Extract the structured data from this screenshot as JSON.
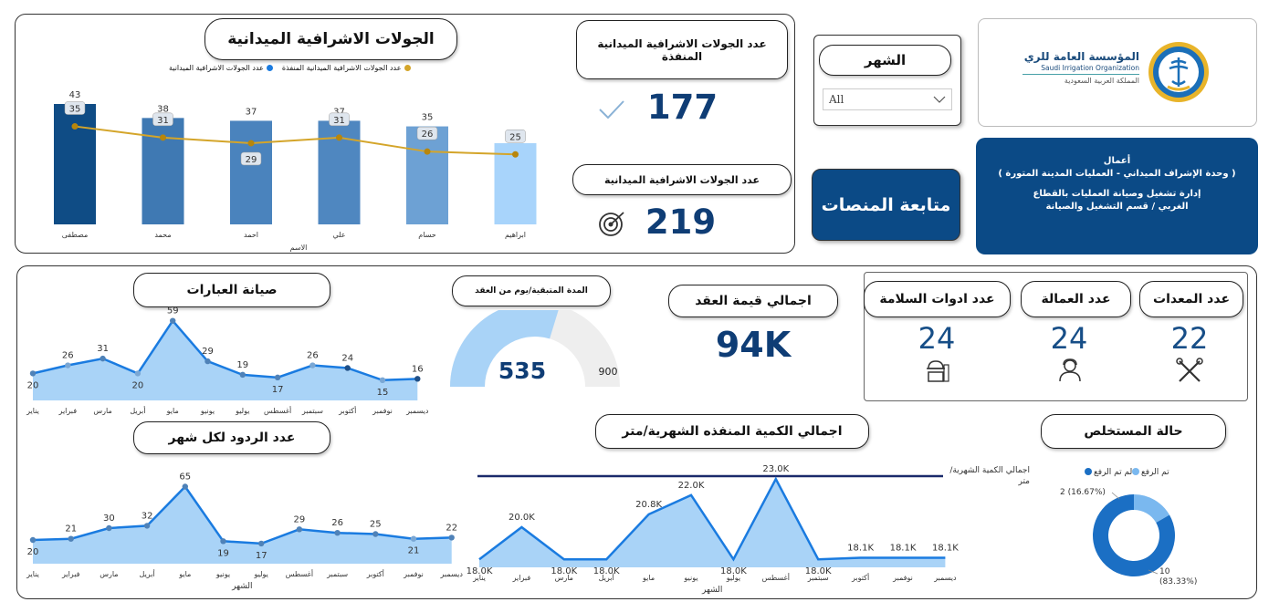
{
  "colors": {
    "navy": "#0b4a86",
    "num": "#0f3d75",
    "line_gold": "#d4a52a",
    "area_light": "#a9d3f7",
    "area_line": "#1a7be0"
  },
  "header": {
    "title": "الجولات الاشرافية الميدانية",
    "legend_a": "عدد الجولات الاشرافية الميدانية المنفذة",
    "legend_b": "عدد الجولات الاشرافية الميدانية",
    "executed_card_title": "عدد الجولات الاشرافية الميدانية المنفذة",
    "executed_value": "177",
    "total_card_title": "عدد الجولات الاشرافية الميدانية",
    "total_value": "219",
    "month_filter_title": "الشهر",
    "month_filter_value": "All",
    "platforms_button": "متابعة المنصات",
    "logo_name_ar": "المؤسسة العامة للري",
    "logo_name_en": "Saudi Irrigation Organization",
    "logo_country": "المملكة العربية السعودية",
    "info_line1": "أعمال",
    "info_line2": "( وحدة الإشراف الميداني - العمليات المدينة المتورة )",
    "info_line3": "إدارة تشغيل وصيانة العمليات بالقطاع",
    "info_line4": "الغربي / قسم التشغيل والصيانة"
  },
  "cards": {
    "contract_title": "اجمالي قيمة العقد",
    "contract_value": "94K",
    "remaining_title": "المدة المتبقية/يوم من العقد",
    "remaining_value": "535",
    "remaining_max": "900",
    "safety_title": "عدد ادوات السلامة",
    "safety_value": "24",
    "labor_title": "عدد العمالة",
    "labor_value": "24",
    "equip_title": "عدد المعدات",
    "equip_value": "22",
    "culverts_title": "صيانة العبارات",
    "replies_title": "عدد الردود لكل شهر",
    "qty_title": "اجمالي الكمية المنفذه الشهرية/متر",
    "qty_legend": "اجمالي الكمية الشهرية/متر",
    "status_title": "حالة المستخلص"
  },
  "chart_data": [
    {
      "type": "bar",
      "title": "الجولات الاشرافية الميدانية",
      "xlabel": "الاسم",
      "categories": [
        "مصطفى",
        "محمد",
        "احمد",
        "علي",
        "حسام",
        "ابراهيم"
      ],
      "series": [
        {
          "name": "عدد الجولات الاشرافية الميدانية",
          "values": [
            43,
            38,
            37,
            37,
            35,
            29
          ]
        },
        {
          "name": "عدد الجولات الاشرافية الميدانية المنفذة",
          "values": [
            35,
            31,
            29,
            31,
            26,
            25
          ]
        }
      ],
      "ylim": [
        0,
        50
      ]
    },
    {
      "type": "area",
      "title": "صيانة العبارات",
      "categories": [
        "يناير",
        "فبراير",
        "مارس",
        "أبريل",
        "مايو",
        "يونيو",
        "يوليو",
        "أغسطس",
        "سبتمبر",
        "أكتوبر",
        "نوفمبر",
        "ديسمبر"
      ],
      "values": [
        20,
        26,
        31,
        20,
        59,
        29,
        19,
        17,
        26,
        24,
        15,
        16
      ],
      "ylim": [
        0,
        65
      ]
    },
    {
      "type": "area",
      "title": "عدد الردود لكل شهر",
      "xlabel": "الشهر",
      "categories": [
        "يناير",
        "فبراير",
        "مارس",
        "أبريل",
        "مايو",
        "يونيو",
        "يوليو",
        "أغسطس",
        "سبتمبر",
        "أكتوبر",
        "نوفمبر",
        "ديسمبر"
      ],
      "values": [
        20,
        21,
        30,
        32,
        65,
        19,
        17,
        29,
        26,
        25,
        21,
        22
      ],
      "ylim": [
        0,
        70
      ]
    },
    {
      "type": "area",
      "title": "اجمالي الكمية المنفذه الشهرية/متر",
      "xlabel": "الشهر",
      "categories": [
        "يناير",
        "فبراير",
        "مارس",
        "أبريل",
        "مايو",
        "يونيو",
        "يوليو",
        "أغسطس",
        "سبتمبر",
        "أكتوبر",
        "نوفمبر",
        "ديسمبر"
      ],
      "values": [
        18.0,
        20.0,
        18.0,
        18.0,
        20.8,
        22.0,
        18.0,
        23.0,
        18.0,
        18.1,
        18.1,
        18.1
      ],
      "labels": [
        "18.0K",
        "20.0K",
        "18.0K",
        "18.0K",
        "20.8K",
        "22.0K",
        "18.0K",
        "23.0K",
        "18.0K",
        "18.1K",
        "18.1K",
        "18.1K"
      ],
      "ylim": [
        17.5,
        23.0
      ]
    },
    {
      "type": "pie",
      "title": "حالة المستخلص",
      "legend": [
        "لم تم الرفع",
        "تم الرفع"
      ],
      "slices": [
        {
          "name": "تم الرفع",
          "value": 2,
          "label": "2 (16.67%)"
        },
        {
          "name": "لم تم الرفع",
          "value": 10,
          "label": "10 (83.33%)"
        }
      ]
    }
  ]
}
